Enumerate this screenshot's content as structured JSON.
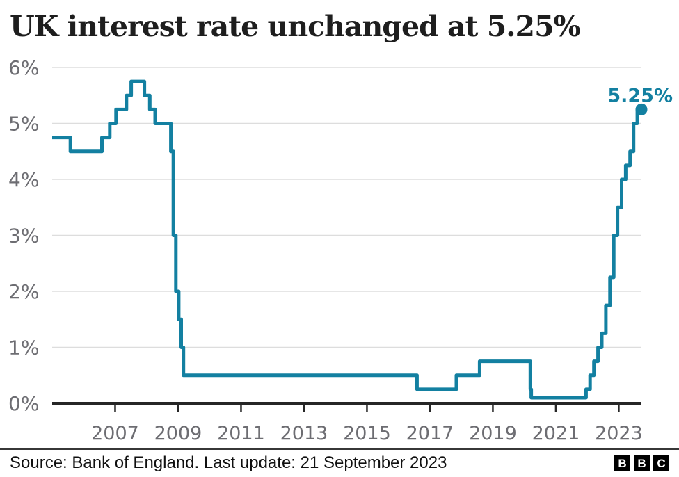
{
  "header": {
    "title": "UK interest rate unchanged at 5.25%"
  },
  "annotation": {
    "end_label": "5.25%"
  },
  "footer": {
    "source": "Source: Bank of England. Last update: 21 September 2023",
    "logo_letters": [
      "B",
      "B",
      "C"
    ]
  },
  "colors": {
    "line": "#1380A1",
    "annotation": "#1380A1",
    "grid": "#dddddd",
    "axis": "#262626",
    "tick_label": "#6d6d72",
    "title": "#1e1e1e",
    "footer_text": "#101010",
    "logo_bg": "#000000",
    "logo_fg": "#ffffff"
  },
  "chart_data": {
    "type": "line",
    "step": true,
    "title": "UK interest rate unchanged at 5.25%",
    "xlabel": "",
    "ylabel": "",
    "xlim": [
      2005,
      2023.72
    ],
    "ylim": [
      0,
      6
    ],
    "grid": "horizontal",
    "legend": "none",
    "end_label": "5.25%",
    "y_ticks": [
      {
        "v": 0,
        "label": "0%"
      },
      {
        "v": 1,
        "label": "1%"
      },
      {
        "v": 2,
        "label": "2%"
      },
      {
        "v": 3,
        "label": "3%"
      },
      {
        "v": 4,
        "label": "4%"
      },
      {
        "v": 5,
        "label": "5%"
      },
      {
        "v": 6,
        "label": "6%"
      }
    ],
    "x_ticks": [
      {
        "v": 2007,
        "label": "2007"
      },
      {
        "v": 2009,
        "label": "2009"
      },
      {
        "v": 2011,
        "label": "2011"
      },
      {
        "v": 2013,
        "label": "2013"
      },
      {
        "v": 2015,
        "label": "2015"
      },
      {
        "v": 2017,
        "label": "2017"
      },
      {
        "v": 2019,
        "label": "2019"
      },
      {
        "v": 2021,
        "label": "2021"
      },
      {
        "v": 2023,
        "label": "2023"
      }
    ],
    "series": [
      {
        "name": "UK interest rate (%)",
        "points": [
          [
            2005.0,
            4.75
          ],
          [
            2005.58,
            4.5
          ],
          [
            2006.58,
            4.75
          ],
          [
            2006.83,
            5.0
          ],
          [
            2007.03,
            5.25
          ],
          [
            2007.36,
            5.5
          ],
          [
            2007.51,
            5.75
          ],
          [
            2007.93,
            5.5
          ],
          [
            2008.1,
            5.25
          ],
          [
            2008.27,
            5.0
          ],
          [
            2008.77,
            4.5
          ],
          [
            2008.85,
            3.0
          ],
          [
            2008.93,
            2.0
          ],
          [
            2009.02,
            1.5
          ],
          [
            2009.1,
            1.0
          ],
          [
            2009.17,
            0.5
          ],
          [
            2016.59,
            0.25
          ],
          [
            2017.84,
            0.5
          ],
          [
            2018.58,
            0.75
          ],
          [
            2020.19,
            0.25
          ],
          [
            2020.22,
            0.1
          ],
          [
            2021.96,
            0.25
          ],
          [
            2022.09,
            0.5
          ],
          [
            2022.21,
            0.75
          ],
          [
            2022.34,
            1.0
          ],
          [
            2022.46,
            1.25
          ],
          [
            2022.59,
            1.75
          ],
          [
            2022.72,
            2.25
          ],
          [
            2022.84,
            3.0
          ],
          [
            2022.96,
            3.5
          ],
          [
            2023.09,
            4.0
          ],
          [
            2023.22,
            4.25
          ],
          [
            2023.36,
            4.5
          ],
          [
            2023.47,
            5.0
          ],
          [
            2023.59,
            5.25
          ],
          [
            2023.72,
            5.25
          ]
        ]
      }
    ]
  }
}
